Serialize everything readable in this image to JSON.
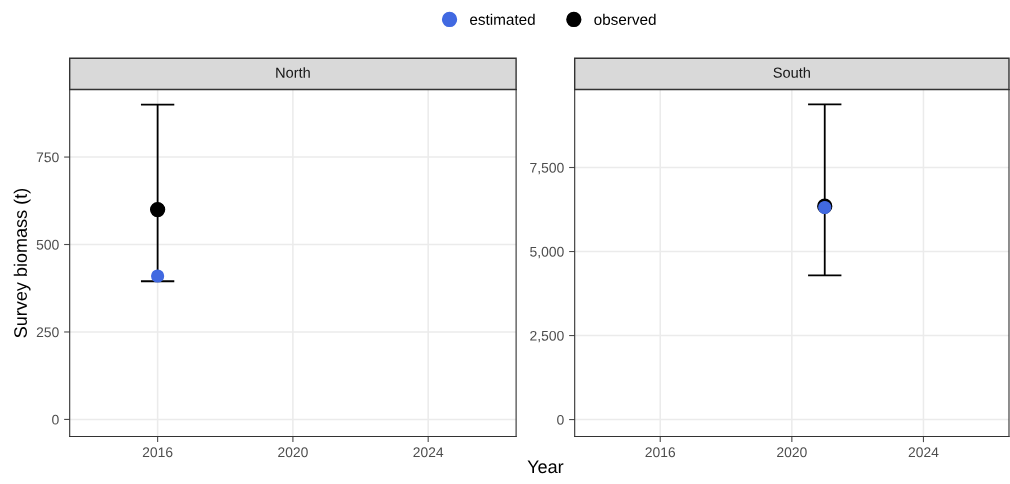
{
  "chart_data": [
    {
      "type": "scatter",
      "title": "North",
      "xlabel": "Year",
      "ylabel": "Survey biomass (t)",
      "legend": "top",
      "grid": true,
      "marker": "circle",
      "xlim": [
        2013.4,
        2026.6
      ],
      "xticks": [
        2016,
        2020,
        2024
      ],
      "ylim": [
        -49,
        943
      ],
      "yticks": [
        0,
        250,
        500,
        750
      ],
      "x": [
        2016
      ],
      "series": [
        {
          "name": "observed",
          "color": "#000000",
          "values": [
            600
          ],
          "errors": [
            [
              395,
              900
            ]
          ]
        },
        {
          "name": "estimated",
          "color": "#4169e1",
          "values": [
            410
          ]
        }
      ]
    },
    {
      "type": "scatter",
      "title": "South",
      "grid": true,
      "marker": "circle",
      "xlim": [
        2013.4,
        2026.6
      ],
      "xticks": [
        2016,
        2020,
        2024
      ],
      "ylim": [
        -506,
        9820
      ],
      "yticks": [
        0,
        {
          "value": 2500,
          "label": "2,500"
        },
        {
          "value": 5000,
          "label": "5,000"
        },
        {
          "value": 7500,
          "label": "7,500"
        }
      ],
      "x": [
        2021
      ],
      "series": [
        {
          "name": "observed",
          "color": "#000000",
          "values": [
            6350
          ],
          "errors": [
            [
              4290,
              9380
            ]
          ]
        },
        {
          "name": "estimated",
          "color": "#4169e1",
          "values": [
            6310
          ]
        }
      ]
    }
  ]
}
